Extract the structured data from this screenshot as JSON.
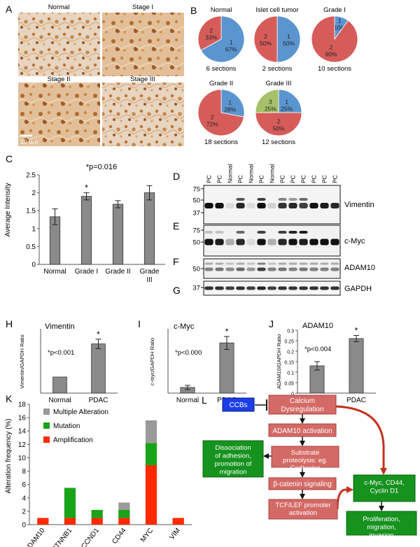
{
  "panels": {
    "A": "A",
    "B": "B",
    "C": "C",
    "D": "D",
    "E": "E",
    "F": "F",
    "G": "G",
    "H": "H",
    "I": "I",
    "J": "J",
    "K": "K",
    "L": "L"
  },
  "panelA": {
    "labels": [
      "Normal",
      "Stage I",
      "Stage II",
      "Stage III"
    ],
    "scale_bar": "10 um"
  },
  "panelB": {
    "pies": [
      {
        "title": "Normal",
        "caption": "6 sections",
        "slices": [
          {
            "label": "1",
            "pct": "67%",
            "value": 67,
            "color": "#5B95CF"
          },
          {
            "label": "2",
            "pct": "33%",
            "value": 33,
            "color": "#D65C5A"
          }
        ]
      },
      {
        "title": "Islet cell tumor",
        "caption": "2 sections",
        "slices": [
          {
            "label": "1",
            "pct": "50%",
            "value": 50,
            "color": "#5B95CF"
          },
          {
            "label": "2",
            "pct": "50%",
            "value": 50,
            "color": "#D65C5A"
          }
        ]
      },
      {
        "title": "Grade I",
        "caption": "10 sections",
        "slices": [
          {
            "label": "1",
            "pct": "10%",
            "value": 10,
            "color": "#5B95CF"
          },
          {
            "label": "2",
            "pct": "90%",
            "value": 90,
            "color": "#D65C5A"
          }
        ]
      },
      {
        "title": "Grade II",
        "caption": "18 sections",
        "slices": [
          {
            "label": "1",
            "pct": "28%",
            "value": 28,
            "color": "#5B95CF"
          },
          {
            "label": "2",
            "pct": "72%",
            "value": 72,
            "color": "#D65C5A"
          }
        ]
      },
      {
        "title": "Grade III",
        "caption": "12 sections",
        "slices": [
          {
            "label": "1",
            "pct": "25%",
            "value": 25,
            "color": "#5B95CF"
          },
          {
            "label": "2",
            "pct": "50%",
            "value": 50,
            "color": "#D65C5A"
          },
          {
            "label": "3",
            "pct": "25%",
            "value": 25,
            "color": "#A6C16A"
          }
        ]
      }
    ]
  },
  "panelD": {
    "lanes": [
      "PC",
      "PC",
      "Normal",
      "PC",
      "Normal",
      "PC",
      "Normal",
      "PC",
      "PC",
      "PC",
      "PC",
      "PC",
      "PC"
    ],
    "markers_D": [
      "75",
      "50",
      "37"
    ],
    "markers_E": [
      "75",
      "50"
    ],
    "markers_F": [
      "50"
    ],
    "markers_G": [
      "37"
    ],
    "proteins": {
      "D": "Vimentin",
      "E": "c-Myc",
      "F": "ADAM10",
      "G": "GAPDH"
    }
  },
  "chart_data": [
    {
      "id": "C",
      "type": "bar",
      "title": "*p=0.016",
      "ylabel": "Average Intensity",
      "categories": [
        "Normal",
        "Grade I",
        "Grade II",
        "Grade III"
      ],
      "values": [
        1.33,
        1.9,
        1.68,
        2.0
      ],
      "errors": [
        0.22,
        0.1,
        0.1,
        0.2
      ],
      "stars": [
        "",
        "*",
        "",
        ""
      ],
      "ylim": [
        0,
        2.5
      ],
      "yticks": [
        "0",
        "0.5",
        "1",
        "1.5",
        "2",
        "2.5"
      ]
    },
    {
      "id": "H",
      "type": "bar",
      "title": "Vimentin",
      "annotation": "*p<0.001",
      "ylabel": "Vimentin/GAPDH Ratio",
      "categories": [
        "Normal",
        "PDAC"
      ],
      "values": [
        0.85,
        2.6
      ],
      "errors": [
        0,
        0.25
      ],
      "stars": [
        "",
        "*"
      ],
      "ylim": [
        0,
        3.4
      ]
    },
    {
      "id": "I",
      "type": "bar",
      "title": "c-Myc",
      "annotation": "*p<0.000",
      "ylabel": "c-myc/GAPDH Ratio",
      "categories": [
        "Normal",
        "PDAC"
      ],
      "values": [
        0.22,
        1.95
      ],
      "errors": [
        0.08,
        0.25
      ],
      "stars": [
        "",
        "*"
      ],
      "ylim": [
        0,
        2.5
      ]
    },
    {
      "id": "J",
      "type": "bar",
      "title": "ADAM10",
      "annotation": "*p<0.004",
      "ylabel": "ADAM10/GAPDH Ratio",
      "categories": [
        "Normal",
        "PDAC"
      ],
      "values": [
        0.13,
        0.26
      ],
      "errors": [
        0.02,
        0.015
      ],
      "stars": [
        "",
        "*"
      ],
      "ylim": [
        0,
        0.3
      ],
      "yticks": [
        "0",
        "0.05",
        "0.1",
        "0.15",
        "0.2",
        "0.25",
        "0.3"
      ]
    },
    {
      "id": "K",
      "type": "bar",
      "stacked": true,
      "ylabel": "Alteration frequency (%)",
      "categories": [
        "ADAM10",
        "CTNNB1",
        "CCND1",
        "CD44",
        "MYC",
        "VIM"
      ],
      "series": [
        {
          "name": "Amplification",
          "color": "#FF2A00",
          "values": [
            1.0,
            1.0,
            1.0,
            1.0,
            8.9,
            1.0
          ]
        },
        {
          "name": "Mutation",
          "color": "#18A418",
          "values": [
            0,
            4.5,
            1.2,
            1.2,
            3.3,
            0
          ]
        },
        {
          "name": "Multiple Alteration",
          "color": "#9A9A9A",
          "values": [
            0,
            0,
            0,
            1.1,
            3.4,
            0
          ]
        }
      ],
      "ylim": [
        0,
        18
      ],
      "yticks": [
        "0",
        "2",
        "4",
        "6",
        "8",
        "10",
        "12",
        "14",
        "16",
        "18"
      ]
    }
  ],
  "panelL": {
    "ccb": "CCBs",
    "calcium": "Calcium Dysregulation",
    "adam10": "ADAM10 activation",
    "dissociation": "Dissociation of adhesion, promotion of migration",
    "substrate": "Substrate proteolysis: eg. Cadherins",
    "bcatenin": "β-catenin signaling",
    "targets": "c-Myc, CD44, Cyclin D1",
    "tcf": "TCF/LEF promoter activation",
    "proliferation": "Proliferation, migration, invasion"
  }
}
